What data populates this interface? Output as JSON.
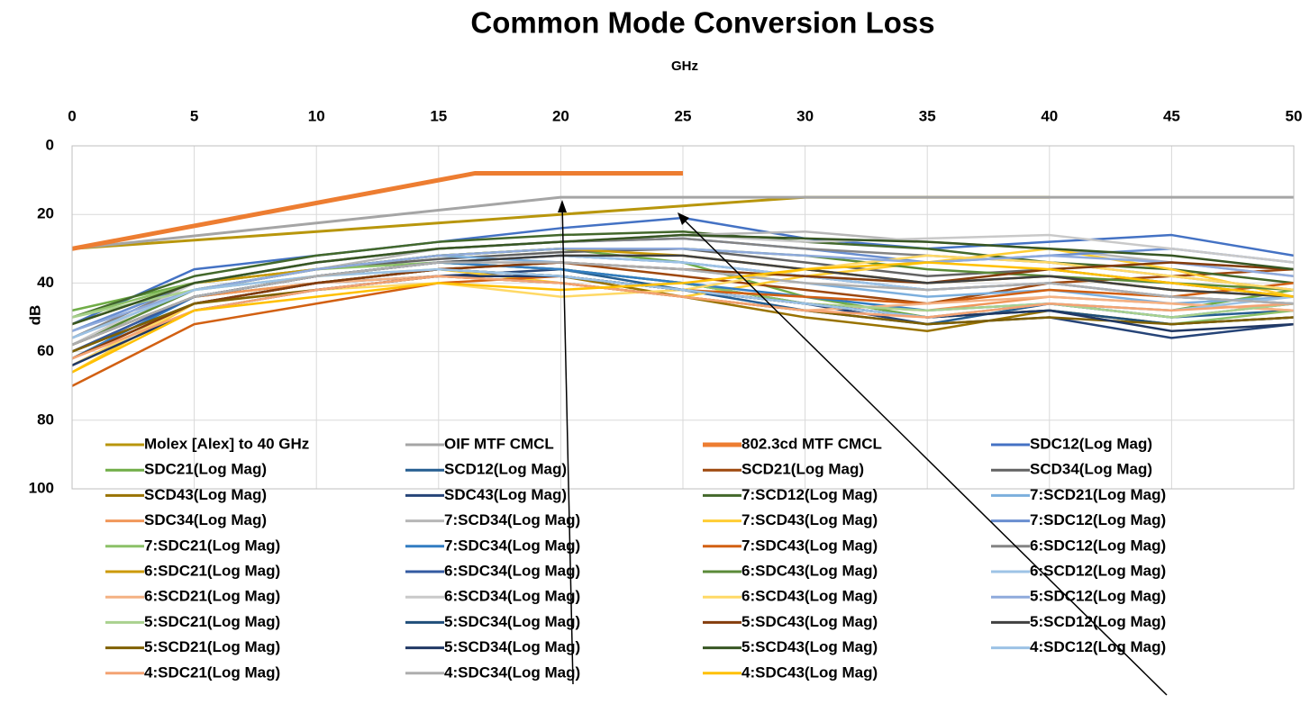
{
  "chart_data": {
    "type": "line",
    "title": "Common Mode Conversion Loss",
    "xlabel": "GHz",
    "ylabel": "dB",
    "x": [
      0,
      5,
      10,
      15,
      20,
      25,
      30,
      35,
      40,
      45,
      50
    ],
    "xlim": [
      0,
      50
    ],
    "xticks": [
      0,
      5,
      10,
      15,
      20,
      25,
      30,
      35,
      40,
      45,
      50
    ],
    "ylim": [
      0,
      100
    ],
    "yticks": [
      0,
      20,
      40,
      60,
      80,
      100
    ],
    "y_inverted": true,
    "x_axis_position": "top",
    "grid": true,
    "series": [
      {
        "name": "Molex [Alex] to 40 GHz",
        "color": "#b8960c",
        "width": 3,
        "x": [
          0,
          30,
          40
        ],
        "values": [
          30,
          15,
          15
        ]
      },
      {
        "name": "OIF MTF CMCL",
        "color": "#a5a5a5",
        "width": 3,
        "x": [
          0,
          20,
          50
        ],
        "values": [
          30,
          15,
          15
        ]
      },
      {
        "name": "802.3cd MTF CMCL",
        "color": "#ed7d31",
        "width": 5,
        "x": [
          0,
          16.5,
          25
        ],
        "values": [
          30,
          8,
          8
        ]
      },
      {
        "name": "SDC12(Log Mag)",
        "color": "#4472c4",
        "values": [
          52,
          36,
          32,
          28,
          24,
          21,
          27,
          30,
          28,
          26,
          32
        ]
      },
      {
        "name": "SDC21(Log Mag)",
        "color": "#70ad47",
        "values": [
          48,
          40,
          36,
          32,
          30,
          34,
          44,
          50,
          46,
          48,
          42
        ]
      },
      {
        "name": "SCD12(Log Mag)",
        "color": "#255e91",
        "values": [
          60,
          44,
          38,
          34,
          36,
          42,
          48,
          52,
          46,
          50,
          48
        ]
      },
      {
        "name": "SCD21(Log Mag)",
        "color": "#9e480e",
        "values": [
          62,
          46,
          40,
          36,
          34,
          38,
          42,
          46,
          40,
          38,
          36
        ]
      },
      {
        "name": "SCD34(Log Mag)",
        "color": "#636363",
        "values": [
          56,
          42,
          36,
          33,
          31,
          30,
          34,
          38,
          36,
          40,
          44
        ]
      },
      {
        "name": "SCD43(Log Mag)",
        "color": "#997300",
        "values": [
          58,
          44,
          40,
          36,
          38,
          44,
          50,
          54,
          48,
          52,
          50
        ]
      },
      {
        "name": "SDC43(Log Mag)",
        "color": "#264478",
        "values": [
          64,
          46,
          40,
          38,
          36,
          40,
          46,
          52,
          50,
          56,
          52
        ]
      },
      {
        "name": "7:SCD12(Log Mag)",
        "color": "#43682b",
        "values": [
          50,
          38,
          32,
          28,
          26,
          25,
          28,
          30,
          34,
          36,
          40
        ]
      },
      {
        "name": "7:SCD21(Log Mag)",
        "color": "#7cafdd",
        "values": [
          54,
          40,
          36,
          32,
          34,
          36,
          40,
          44,
          42,
          46,
          44
        ]
      },
      {
        "name": "SDC34(Log Mag)",
        "color": "#f1975a",
        "values": [
          60,
          44,
          40,
          36,
          38,
          42,
          46,
          48,
          44,
          46,
          48
        ]
      },
      {
        "name": "7:SCD34(Log Mag)",
        "color": "#b7b7b7",
        "values": [
          58,
          42,
          36,
          30,
          28,
          26,
          25,
          28,
          30,
          34,
          38
        ]
      },
      {
        "name": "7:SCD43(Log Mag)",
        "color": "#ffcd33",
        "values": [
          66,
          46,
          40,
          36,
          40,
          44,
          38,
          34,
          30,
          36,
          44
        ]
      },
      {
        "name": "7:SDC12(Log Mag)",
        "color": "#698ed0",
        "values": [
          54,
          40,
          34,
          30,
          28,
          27,
          30,
          34,
          32,
          30,
          34
        ]
      },
      {
        "name": "7:SDC21(Log Mag)",
        "color": "#8cc168",
        "values": [
          50,
          40,
          36,
          34,
          36,
          40,
          46,
          50,
          48,
          52,
          48
        ]
      },
      {
        "name": "7:SDC34(Log Mag)",
        "color": "#327dc2",
        "values": [
          62,
          44,
          38,
          34,
          36,
          40,
          44,
          48,
          46,
          50,
          46
        ]
      },
      {
        "name": "7:SDC43(Log Mag)",
        "color": "#d26012",
        "values": [
          70,
          52,
          46,
          40,
          38,
          42,
          44,
          46,
          42,
          44,
          40
        ]
      },
      {
        "name": "6:SDC12(Log Mag)",
        "color": "#848484",
        "values": [
          56,
          40,
          34,
          30,
          28,
          27,
          30,
          32,
          34,
          38,
          42
        ]
      },
      {
        "name": "6:SDC21(Log Mag)",
        "color": "#cc9a06",
        "values": [
          52,
          40,
          36,
          32,
          30,
          32,
          36,
          40,
          38,
          42,
          44
        ]
      },
      {
        "name": "6:SDC34(Log Mag)",
        "color": "#335aa1",
        "values": [
          60,
          44,
          38,
          34,
          32,
          34,
          38,
          42,
          40,
          44,
          46
        ]
      },
      {
        "name": "6:SDC43(Log Mag)",
        "color": "#5a8a38",
        "values": [
          58,
          42,
          36,
          32,
          30,
          30,
          32,
          36,
          38,
          40,
          42
        ]
      },
      {
        "name": "6:SCD12(Log Mag)",
        "color": "#9dc3e6",
        "values": [
          56,
          42,
          38,
          34,
          32,
          34,
          38,
          42,
          40,
          44,
          46
        ]
      },
      {
        "name": "6:SCD21(Log Mag)",
        "color": "#f4b183",
        "values": [
          62,
          46,
          40,
          38,
          40,
          44,
          48,
          46,
          44,
          46,
          48
        ]
      },
      {
        "name": "6:SCD34(Log Mag)",
        "color": "#c9c9c9",
        "values": [
          58,
          40,
          34,
          30,
          28,
          26,
          28,
          27,
          26,
          30,
          34
        ]
      },
      {
        "name": "6:SCD43(Log Mag)",
        "color": "#ffd966",
        "values": [
          64,
          46,
          42,
          40,
          44,
          42,
          36,
          32,
          34,
          38,
          42
        ]
      },
      {
        "name": "5:SDC12(Log Mag)",
        "color": "#8faadc",
        "values": [
          54,
          42,
          36,
          32,
          30,
          30,
          32,
          34,
          32,
          34,
          38
        ]
      },
      {
        "name": "5:SDC21(Log Mag)",
        "color": "#a9d18e",
        "values": [
          50,
          42,
          38,
          36,
          38,
          42,
          46,
          48,
          46,
          50,
          46
        ]
      },
      {
        "name": "5:SDC34(Log Mag)",
        "color": "#1f4e79",
        "values": [
          60,
          46,
          40,
          36,
          38,
          42,
          46,
          50,
          48,
          52,
          50
        ]
      },
      {
        "name": "5:SDC43(Log Mag)",
        "color": "#843c0c",
        "values": [
          62,
          46,
          40,
          36,
          34,
          36,
          38,
          40,
          36,
          34,
          36
        ]
      },
      {
        "name": "5:SCD12(Log Mag)",
        "color": "#404040",
        "values": [
          58,
          44,
          38,
          34,
          32,
          32,
          36,
          40,
          38,
          42,
          44
        ]
      },
      {
        "name": "5:SCD21(Log Mag)",
        "color": "#7f6000",
        "values": [
          60,
          46,
          42,
          38,
          40,
          44,
          48,
          52,
          50,
          52,
          50
        ]
      },
      {
        "name": "5:SCD34(Log Mag)",
        "color": "#203864",
        "values": [
          64,
          48,
          42,
          38,
          38,
          42,
          46,
          50,
          48,
          54,
          52
        ]
      },
      {
        "name": "5:SCD43(Log Mag)",
        "color": "#375623",
        "values": [
          52,
          40,
          34,
          30,
          28,
          26,
          27,
          28,
          30,
          32,
          36
        ]
      },
      {
        "name": "4:SDC12(Log Mag)",
        "color": "#9cc2e5",
        "values": [
          56,
          42,
          38,
          36,
          38,
          42,
          46,
          50,
          46,
          48,
          44
        ]
      },
      {
        "name": "4:SDC21(Log Mag)",
        "color": "#f4a373",
        "values": [
          62,
          48,
          42,
          38,
          40,
          44,
          48,
          50,
          46,
          48,
          46
        ]
      },
      {
        "name": "4:SDC34(Log Mag)",
        "color": "#aeaeae",
        "values": [
          58,
          44,
          38,
          34,
          34,
          36,
          40,
          42,
          40,
          44,
          46
        ]
      },
      {
        "name": "4:SDC43(Log Mag)",
        "color": "#ffc000",
        "values": [
          66,
          48,
          44,
          40,
          42,
          40,
          36,
          34,
          36,
          40,
          44
        ]
      }
    ]
  }
}
